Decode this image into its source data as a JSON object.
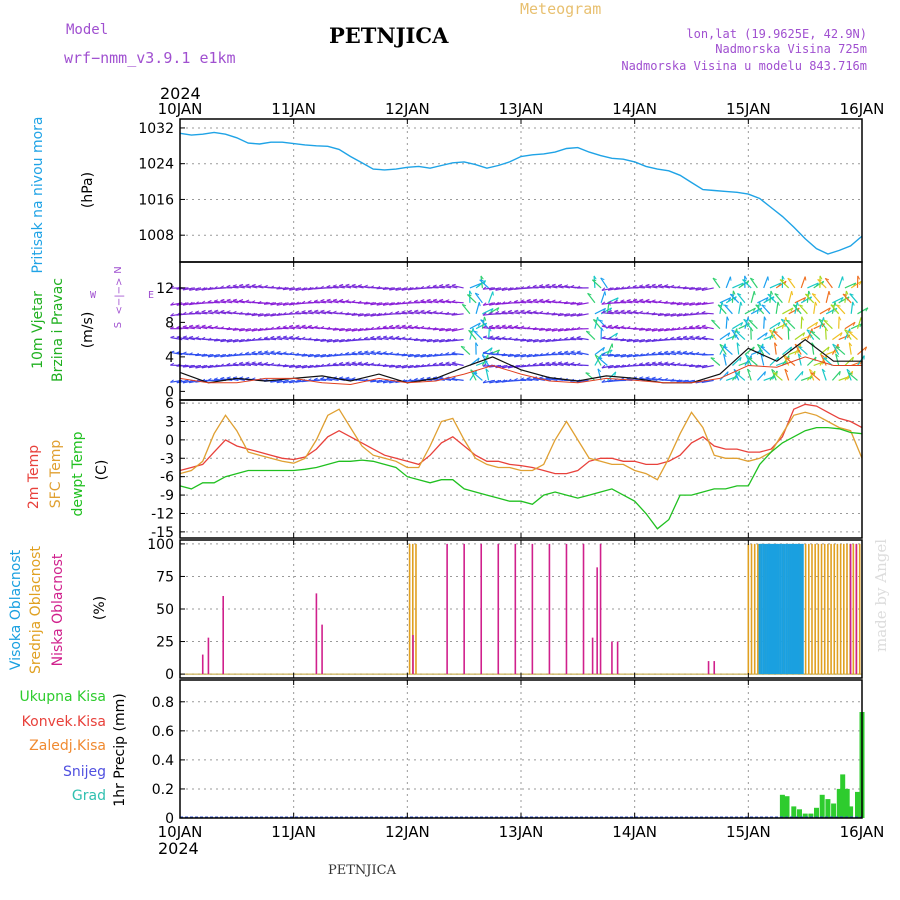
{
  "header": {
    "model_label": "Model",
    "model_name": "wrf−nmm_v3.9.1  e1km",
    "station": "PETNJICA",
    "product": "Meteogram",
    "lonlat": "lon,lat (19.9625E, 42.9N)",
    "elevation": "Nadmorska Visina 725m",
    "model_elevation": "Nadmorska Visina u modelu 843.716m",
    "footer_station": "PETNJICA",
    "watermark": "made by Angel",
    "year_top": "2024",
    "year_bottom": "2024"
  },
  "colors": {
    "pressure": "#1fa3e6",
    "t2m": "#e8413b",
    "tsfc": "#e0a032",
    "dewpt": "#20c020",
    "cloud_high": "#1aa0e0",
    "cloud_mid": "#e0a020",
    "cloud_low": "#d0208c",
    "precip_total": "#2ecc2e",
    "purple": "#a050d0"
  },
  "chart_data": [
    {
      "type": "line",
      "title": "",
      "ylabel": "(hPa)",
      "side_label": "Pritisak na nivou mora",
      "x_ticks": [
        "10JAN",
        "11JAN",
        "12JAN",
        "13JAN",
        "14JAN",
        "15JAN",
        "16JAN"
      ],
      "ylim": [
        1002,
        1034
      ],
      "yticks": [
        "1032",
        "1024",
        "1016",
        "1008"
      ],
      "ytick_values": [
        1032,
        1024,
        1016,
        1008
      ],
      "x_days": [
        0,
        0.1,
        0.2,
        0.3,
        0.4,
        0.5,
        0.6,
        0.7,
        0.8,
        0.9,
        1.0,
        1.1,
        1.2,
        1.3,
        1.4,
        1.5,
        1.6,
        1.7,
        1.8,
        1.9,
        2.0,
        2.1,
        2.2,
        2.3,
        2.4,
        2.5,
        2.6,
        2.7,
        2.8,
        2.9,
        3.0,
        3.1,
        3.2,
        3.3,
        3.4,
        3.5,
        3.6,
        3.7,
        3.8,
        3.9,
        4.0,
        4.1,
        4.2,
        4.3,
        4.4,
        4.5,
        4.6,
        4.7,
        4.8,
        4.9,
        5.0,
        5.1,
        5.2,
        5.3,
        5.4,
        5.5,
        5.6,
        5.7,
        5.8,
        5.9,
        6.0
      ],
      "series": [
        {
          "name": "",
          "values": [
            1030.8,
            1030.4,
            1030.6,
            1031.0,
            1030.6,
            1029.8,
            1028.6,
            1028.4,
            1028.8,
            1028.8,
            1028.5,
            1028.2,
            1028.0,
            1027.9,
            1027.2,
            1025.6,
            1024.2,
            1022.8,
            1022.6,
            1022.8,
            1023.2,
            1023.4,
            1023.0,
            1023.6,
            1024.2,
            1024.4,
            1023.8,
            1023.0,
            1023.6,
            1024.4,
            1025.6,
            1026.0,
            1026.2,
            1026.6,
            1027.4,
            1027.6,
            1026.6,
            1025.8,
            1025.2,
            1025.0,
            1024.4,
            1023.4,
            1022.8,
            1022.4,
            1021.4,
            1019.8,
            1018.2,
            1018.0,
            1017.8,
            1017.6,
            1017.2,
            1016.2,
            1014.2,
            1012.2,
            1009.8,
            1007.2,
            1005.0,
            1003.8,
            1004.6,
            1005.6,
            1007.8
          ]
        }
      ]
    },
    {
      "type": "vector",
      "title": "",
      "ylabel": "(m/s)",
      "side_label_1": "10m Vjetar",
      "side_label_2": "Brzina i Pravac",
      "compass": [
        "N",
        "S",
        "W",
        "E"
      ],
      "compass_glyph": "<−|−>",
      "ylim": [
        -1,
        15
      ],
      "yticks": [
        "12",
        "8",
        "4",
        "0"
      ],
      "ytick_values": [
        12,
        8,
        4,
        0
      ],
      "x_days": [
        0,
        0.25,
        0.5,
        0.75,
        1.0,
        1.25,
        1.5,
        1.75,
        2.0,
        2.25,
        2.5,
        2.75,
        3.0,
        3.25,
        3.5,
        3.75,
        4.0,
        4.25,
        4.5,
        4.75,
        5.0,
        5.25,
        5.5,
        5.75,
        6.0
      ],
      "speed": [
        2.2,
        1.0,
        1.5,
        1.2,
        1.5,
        1.8,
        1.2,
        2.0,
        1.0,
        1.5,
        2.8,
        4.0,
        2.5,
        1.6,
        1.2,
        1.8,
        1.5,
        1.0,
        1.0,
        2.0,
        5.0,
        3.5,
        6.0,
        3.5,
        3.5
      ],
      "gust": [
        1.5,
        1.0,
        1.0,
        1.5,
        1.5,
        1.0,
        0.8,
        1.5,
        1.0,
        1.2,
        2.0,
        3.0,
        2.0,
        1.2,
        1.0,
        1.5,
        1.3,
        1.0,
        1.0,
        1.5,
        3.0,
        2.8,
        4.0,
        3.0,
        3.0
      ]
    },
    {
      "type": "line",
      "title": "",
      "ylabel": "(C)",
      "side_label_1": "2m Temp",
      "side_label_2": "SFC Temp",
      "side_label_3": "dewpt Temp",
      "ylim": [
        -16,
        6.5
      ],
      "yticks": [
        "6",
        "3",
        "0",
        "-3",
        "-6",
        "-9",
        "-12",
        "-15"
      ],
      "ytick_values": [
        6,
        3,
        0,
        -3,
        -6,
        -9,
        -12,
        -15
      ],
      "x_days": [
        0,
        0.1,
        0.2,
        0.3,
        0.4,
        0.5,
        0.6,
        0.7,
        0.8,
        0.9,
        1.0,
        1.1,
        1.2,
        1.3,
        1.4,
        1.5,
        1.6,
        1.7,
        1.8,
        1.9,
        2.0,
        2.1,
        2.2,
        2.3,
        2.4,
        2.5,
        2.6,
        2.7,
        2.8,
        2.9,
        3.0,
        3.1,
        3.2,
        3.3,
        3.4,
        3.5,
        3.6,
        3.7,
        3.8,
        3.9,
        4.0,
        4.1,
        4.2,
        4.3,
        4.4,
        4.5,
        4.6,
        4.7,
        4.8,
        4.9,
        5.0,
        5.1,
        5.2,
        5.3,
        5.4,
        5.5,
        5.6,
        5.7,
        5.8,
        5.9,
        6.0
      ],
      "series": [
        {
          "name": "2m Temp",
          "color_key": "t2m",
          "values": [
            -5,
            -4.5,
            -4,
            -2,
            0,
            -1,
            -1.5,
            -2,
            -2.5,
            -3,
            -3.2,
            -2.8,
            -1.5,
            0.5,
            1.5,
            0.5,
            -0.5,
            -1.5,
            -2.5,
            -3,
            -3.5,
            -4,
            -2.5,
            -0.5,
            0.5,
            -1,
            -2.5,
            -3.5,
            -3.5,
            -4,
            -4.2,
            -4.5,
            -5,
            -5.5,
            -5.5,
            -5,
            -3.5,
            -3,
            -3,
            -3.5,
            -3.5,
            -4,
            -4,
            -3.5,
            -2.5,
            -0.5,
            0.5,
            -1,
            -1.5,
            -1.5,
            -2,
            -2,
            -1.5,
            0.5,
            5.0,
            5.8,
            5.5,
            4.5,
            3.5,
            3.0,
            2.0
          ]
        },
        {
          "name": "SFC Temp",
          "color_key": "tsfc",
          "values": [
            -5.5,
            -5,
            -3.5,
            1,
            4,
            1.5,
            -2,
            -2.5,
            -3,
            -3.5,
            -3.8,
            -3,
            0,
            4,
            5,
            2,
            -1,
            -2.5,
            -3,
            -3.5,
            -4.5,
            -4.5,
            -1,
            3,
            3.5,
            0,
            -3,
            -4,
            -4.5,
            -4.5,
            -5,
            -5,
            -4,
            0,
            3,
            0,
            -3,
            -3.5,
            -4,
            -4,
            -5,
            -5.5,
            -6.5,
            -3,
            1,
            4.5,
            2,
            -2.5,
            -3,
            -3,
            -3.5,
            -3,
            -2,
            1,
            4,
            4.5,
            4,
            3,
            2,
            1.5,
            -3
          ]
        },
        {
          "name": "dewpt Temp",
          "color_key": "dewpt",
          "values": [
            -7.5,
            -8,
            -7,
            -7,
            -6,
            -5.5,
            -5,
            -5,
            -5,
            -5,
            -5,
            -4.8,
            -4.5,
            -4,
            -3.5,
            -3.5,
            -3.3,
            -3.5,
            -4,
            -4.5,
            -6,
            -6.5,
            -7,
            -6.5,
            -6.5,
            -8,
            -8.5,
            -9,
            -9.5,
            -10,
            -10,
            -10.5,
            -9,
            -8.5,
            -9,
            -9.5,
            -9,
            -8.5,
            -8,
            -9,
            -10,
            -12,
            -14.5,
            -13,
            -9,
            -9,
            -8.5,
            -8,
            -8,
            -7.5,
            -7.5,
            -4,
            -2,
            -0.5,
            0.5,
            1.5,
            2.0,
            2.0,
            1.8,
            1.2,
            1.0
          ]
        }
      ]
    },
    {
      "type": "bar",
      "title": "",
      "ylabel": "(%)",
      "side_label_1": "Visoka Oblacnost",
      "side_label_2": "Srednja Oblacnost",
      "side_label_3": "Niska  Oblacnost",
      "ylim": [
        -3,
        103
      ],
      "yticks": [
        "100",
        "75",
        "50",
        "25",
        "0"
      ],
      "ytick_values": [
        100,
        75,
        50,
        25,
        0
      ],
      "low_cloud": [
        {
          "day": 0.2,
          "value": 15
        },
        {
          "day": 0.25,
          "value": 28
        },
        {
          "day": 0.38,
          "value": 60
        },
        {
          "day": 1.2,
          "value": 62
        },
        {
          "day": 1.25,
          "value": 38
        },
        {
          "day": 2.05,
          "value": 30
        },
        {
          "day": 2.35,
          "value": 100
        },
        {
          "day": 2.5,
          "value": 100
        },
        {
          "day": 2.65,
          "value": 100
        },
        {
          "day": 2.8,
          "value": 100
        },
        {
          "day": 2.95,
          "value": 100
        },
        {
          "day": 3.1,
          "value": 100
        },
        {
          "day": 3.25,
          "value": 100
        },
        {
          "day": 3.4,
          "value": 100
        },
        {
          "day": 3.55,
          "value": 100
        },
        {
          "day": 3.7,
          "value": 100
        },
        {
          "day": 3.63,
          "value": 28
        },
        {
          "day": 3.67,
          "value": 82
        },
        {
          "day": 3.8,
          "value": 25
        },
        {
          "day": 3.85,
          "value": 25
        },
        {
          "day": 4.65,
          "value": 10
        },
        {
          "day": 4.7,
          "value": 10
        },
        {
          "day": 5.9,
          "value": 100
        },
        {
          "day": 5.95,
          "value": 100
        }
      ],
      "mid_cloud_ranges": [
        [
          2.02,
          2.1
        ],
        [
          5.0,
          5.98
        ]
      ],
      "high_cloud_range": [
        5.1,
        5.48
      ]
    },
    {
      "type": "bar",
      "title": "",
      "ylabel": "1hr Precip (mm)",
      "legend": [
        "Ukupna  Kisa",
        "Konvek.Kisa",
        "Zaledj.Kisa",
        "Snijeg",
        "Grad"
      ],
      "ylim": [
        0,
        0.95
      ],
      "yticks": [
        "0.8",
        "0.6",
        "0.4",
        "0.2",
        "0"
      ],
      "ytick_values": [
        0.8,
        0.6,
        0.4,
        0.2,
        0
      ],
      "x_ticks": [
        "10JAN",
        "11JAN",
        "12JAN",
        "13JAN",
        "14JAN",
        "15JAN",
        "16JAN"
      ],
      "bars": [
        {
          "day": 5.3,
          "value": 0.16
        },
        {
          "day": 5.34,
          "value": 0.15
        },
        {
          "day": 5.4,
          "value": 0.08
        },
        {
          "day": 5.45,
          "value": 0.06
        },
        {
          "day": 5.5,
          "value": 0.03
        },
        {
          "day": 5.55,
          "value": 0.03
        },
        {
          "day": 5.6,
          "value": 0.07
        },
        {
          "day": 5.65,
          "value": 0.16
        },
        {
          "day": 5.7,
          "value": 0.13
        },
        {
          "day": 5.75,
          "value": 0.1
        },
        {
          "day": 5.8,
          "value": 0.2
        },
        {
          "day": 5.83,
          "value": 0.3
        },
        {
          "day": 5.87,
          "value": 0.2
        },
        {
          "day": 5.9,
          "value": 0.08
        },
        {
          "day": 5.96,
          "value": 0.18
        },
        {
          "day": 6.0,
          "value": 0.73
        }
      ]
    }
  ]
}
